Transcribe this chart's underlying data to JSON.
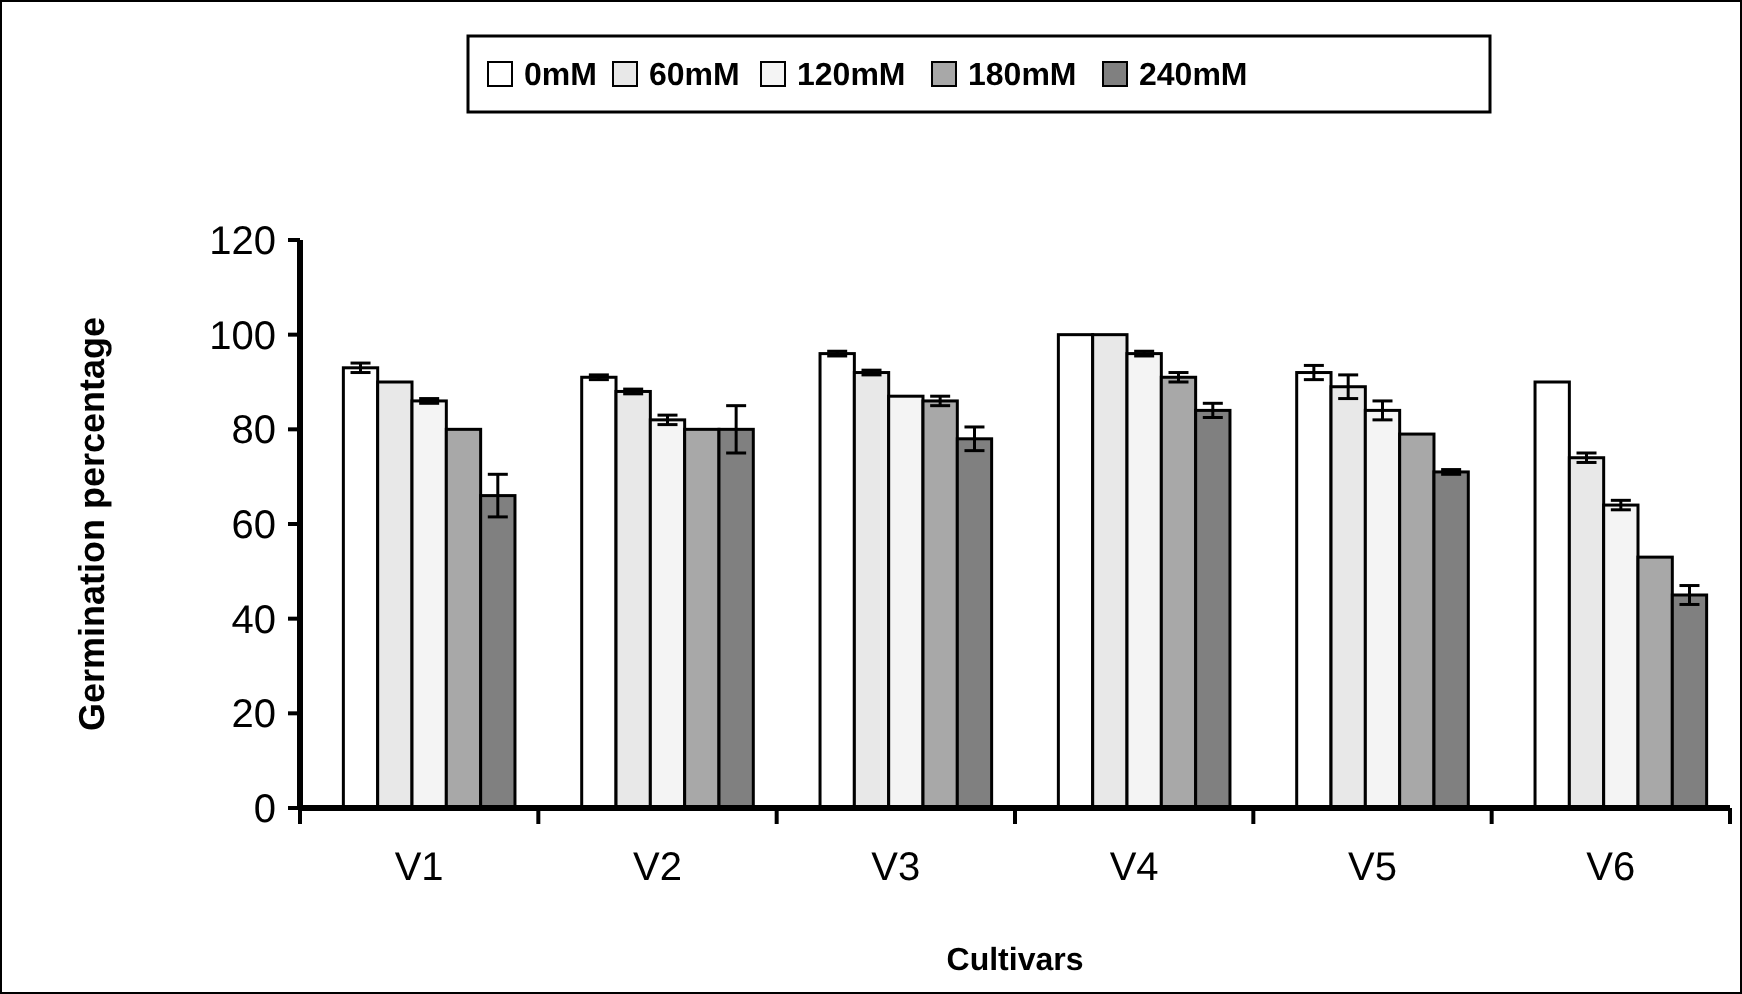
{
  "chart_data": {
    "type": "bar",
    "xlabel": "Cultivars",
    "ylabel": "Germination percentage",
    "categories": [
      "V1",
      "V2",
      "V3",
      "V4",
      "V5",
      "V6"
    ],
    "series": [
      {
        "name": "0mM",
        "color": "#ffffff",
        "values": [
          93,
          91,
          96,
          100,
          92,
          90
        ],
        "errors": [
          1,
          0.5,
          0.5,
          null,
          1.5,
          null
        ]
      },
      {
        "name": "60mM",
        "color": "#e8e8e8",
        "values": [
          90,
          88,
          92,
          100,
          89,
          74
        ],
        "errors": [
          null,
          0.5,
          0.5,
          null,
          2.5,
          1
        ]
      },
      {
        "name": "120mM",
        "color": "#f4f4f4",
        "values": [
          86,
          82,
          87,
          96,
          84,
          64
        ],
        "errors": [
          0.5,
          1,
          null,
          0.5,
          2,
          1
        ]
      },
      {
        "name": "180mM",
        "color": "#a8a8a8",
        "values": [
          80,
          80,
          86,
          91,
          79,
          53
        ],
        "errors": [
          null,
          null,
          1,
          1,
          null,
          null
        ]
      },
      {
        "name": "240mM",
        "color": "#808080",
        "values": [
          66,
          80,
          78,
          84,
          71,
          45
        ],
        "errors": [
          4.5,
          5,
          2.5,
          1.5,
          0.5,
          2
        ]
      }
    ],
    "ylim": [
      0,
      120
    ],
    "yticks": [
      0,
      20,
      40,
      60,
      80,
      100,
      120
    ],
    "legend": "top",
    "grid": false
  }
}
